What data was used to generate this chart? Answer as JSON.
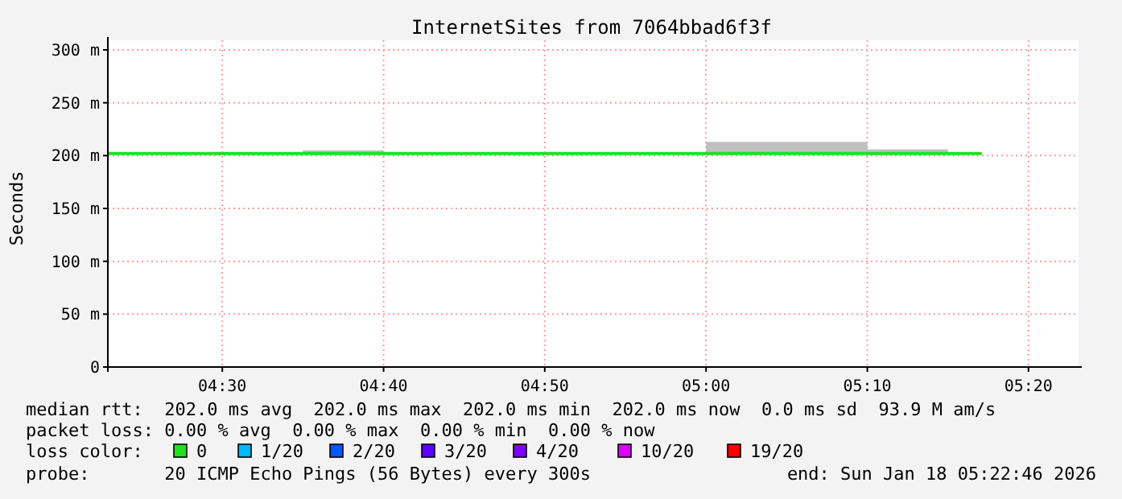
{
  "chart_data": {
    "type": "step",
    "title": "InternetSites from 7064bbad6f3f",
    "ylabel": "Seconds",
    "legend_title": "loss color:",
    "legend": "bottom",
    "grid": true,
    "x": [
      4.3817,
      4.5833,
      4.6667,
      5.0,
      5.0833,
      5.1667,
      5.25,
      5.285
    ],
    "xlim": [
      4.3817,
      5.3817
    ],
    "xticks": [
      {
        "value": 4.5,
        "label": "04:30"
      },
      {
        "value": 4.6667,
        "label": "04:40"
      },
      {
        "value": 4.8333,
        "label": "04:50"
      },
      {
        "value": 5.0,
        "label": "05:00"
      },
      {
        "value": 5.1667,
        "label": "05:10"
      },
      {
        "value": 5.3333,
        "label": "05:20"
      }
    ],
    "ylim": [
      0,
      300
    ],
    "yticks": [
      0,
      {
        "value": 50,
        "label": "50 m"
      },
      {
        "value": 100,
        "label": "100 m"
      },
      {
        "value": 150,
        "label": "150 m"
      },
      {
        "value": 200,
        "label": "200 m"
      },
      {
        "value": 250,
        "label": "250 m"
      },
      {
        "value": 300,
        "label": "300 m"
      }
    ],
    "series": [
      {
        "name": "0",
        "color": "#20e020",
        "values": [
          202,
          202,
          202,
          202,
          202,
          202,
          202,
          202
        ],
        "lower": [
          202,
          202,
          202,
          202,
          202,
          202,
          202,
          202
        ],
        "upper": [
          202,
          205,
          202,
          213,
          213,
          206,
          202,
          202
        ]
      },
      {
        "name": "1/20",
        "color": "#00b8ff",
        "values": [
          null,
          null,
          null,
          null,
          null,
          null,
          null,
          null
        ]
      },
      {
        "name": "2/20",
        "color": "#0059ff",
        "values": [
          null,
          null,
          null,
          null,
          null,
          null,
          null,
          null
        ]
      },
      {
        "name": "3/20",
        "color": "#5e00ff",
        "values": [
          null,
          null,
          null,
          null,
          null,
          null,
          null,
          null
        ]
      },
      {
        "name": "4/20",
        "color": "#7e00ff",
        "values": [
          null,
          null,
          null,
          null,
          null,
          null,
          null,
          null
        ]
      },
      {
        "name": "10/20",
        "color": "#dd00ff",
        "values": [
          null,
          null,
          null,
          null,
          null,
          null,
          null,
          null
        ]
      },
      {
        "name": "19/20",
        "color": "#ff0000",
        "values": [
          null,
          null,
          null,
          null,
          null,
          null,
          null,
          null
        ]
      }
    ],
    "annotations": [
      "median rtt:  202.0 ms avg  202.0 ms max  202.0 ms min  202.0 ms now  0.0 ms sd  93.9 M am/s",
      "packet loss: 0.00 % avg  0.00 % max  0.00 % min  0.00 % now",
      "probe:       20 ICMP Echo Pings (56 Bytes) every 300s",
      "end: Sun Jan 18 05:22:46 2026"
    ]
  }
}
